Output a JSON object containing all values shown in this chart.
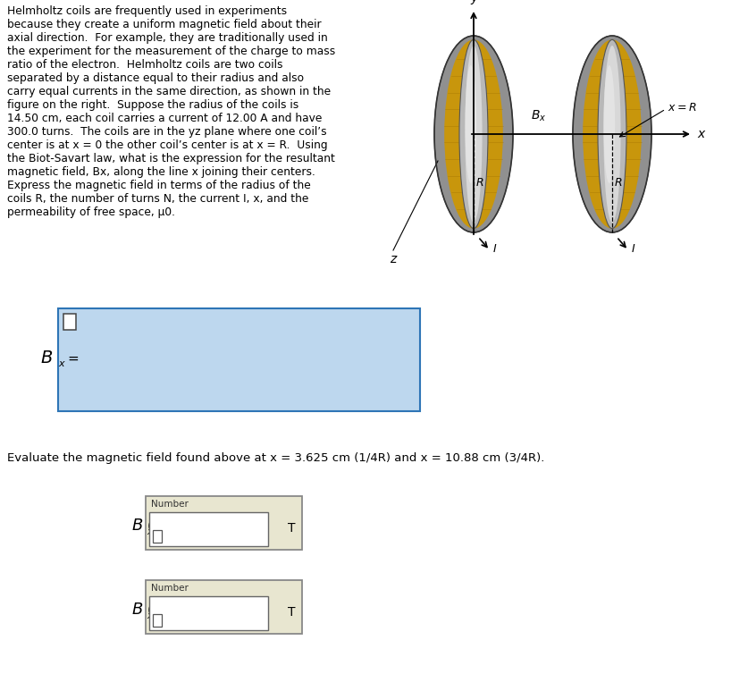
{
  "bg_color": "#ffffff",
  "text_color": "#000000",
  "paragraph_lines": [
    "Helmholtz coils are frequently used in experiments",
    "because they create a uniform magnetic field about their",
    "axial direction.  For example, they are traditionally used in",
    "the experiment for the measurement of the charge to mass",
    "ratio of the electron.  Helmholtz coils are two coils",
    "separated by a distance equal to their radius and also",
    "carry equal currents in the same direction, as shown in the",
    "figure on the right.  Suppose the radius of the coils is",
    "14.50 cm, each coil carries a current of 12.00 A and have",
    "300.0 turns.  The coils are in the yz plane where one coil’s",
    "center is at x = 0 the other coil’s center is at x = R.  Using",
    "the Biot-Savart law, what is the expression for the resultant",
    "magnetic field, Bx, along the line x joining their centers.",
    "Express the magnetic field in terms of the radius of the",
    "coils R, the number of turns N, the current I, x, and the",
    "permeability of free space, μ0."
  ],
  "answer_box_color": "#bdd7ee",
  "answer_box_border": "#2e75b6",
  "input_box_color": "#e8e6d0",
  "input_box_border": "#888888",
  "inner_box_color": "#ffffff",
  "evaluate_text": "Evaluate the magnetic field found above at x = 3.625 cm (1/4R) and x = 10.88 cm (3/4R).",
  "coil_gold": "#c8960c",
  "coil_gray_outer": "#909090",
  "coil_gray_mid": "#b8b8b8",
  "coil_gray_inner": "#d8d8d8",
  "coil_gray_center": "#e8e8e8"
}
